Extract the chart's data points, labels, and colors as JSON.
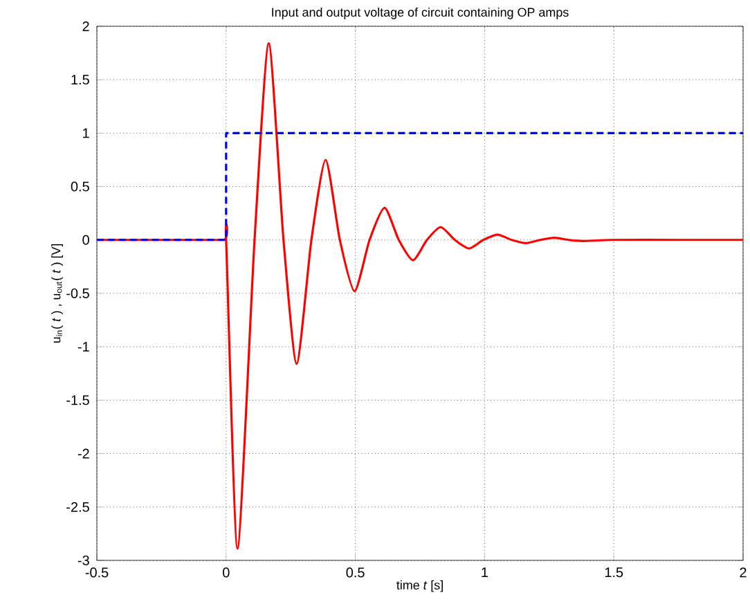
{
  "chart_data": {
    "type": "line",
    "title": "Input and output voltage of circuit containing OP amps",
    "xlabel": "time *t* [s]",
    "ylabel": "u$_{in}$( *t* ) , u$_{out}$( *t* ) [V]",
    "xlim": [
      -0.5,
      2
    ],
    "ylim": [
      -3,
      2
    ],
    "xticks": [
      -0.5,
      0,
      0.5,
      1,
      1.5,
      2
    ],
    "yticks": [
      -3,
      -2.5,
      -2,
      -1.5,
      -1,
      -0.5,
      0,
      0.5,
      1,
      1.5,
      2
    ],
    "grid": true,
    "series": [
      {
        "color": "#ff0000",
        "line_style": "solid",
        "x": [
          -0.5,
          -0.25,
          -0.01,
          0,
          0.044,
          0.11,
          0.165,
          0.222,
          0.273,
          0.33,
          0.385,
          0.44,
          0.497,
          0.555,
          0.613,
          0.668,
          0.723,
          0.777,
          0.83,
          0.885,
          0.94,
          0.995,
          1.05,
          1.105,
          1.16,
          1.215,
          1.27,
          1.325,
          1.38,
          1.5,
          1.75,
          2
        ],
        "values": [
          0,
          0,
          0,
          0,
          -2.89,
          0,
          1.84,
          0,
          -1.16,
          0,
          0.75,
          0,
          -0.48,
          0,
          0.3,
          0,
          -0.19,
          0,
          0.12,
          0,
          -0.08,
          0,
          0.05,
          0,
          -0.03,
          0,
          0.02,
          0,
          -0.01,
          0,
          0,
          0
        ]
      },
      {
        "color": "#0000ff",
        "line_style": "dashed",
        "x": [
          -0.5,
          0,
          0,
          2
        ],
        "values": [
          0,
          0,
          1,
          1
        ]
      }
    ]
  }
}
